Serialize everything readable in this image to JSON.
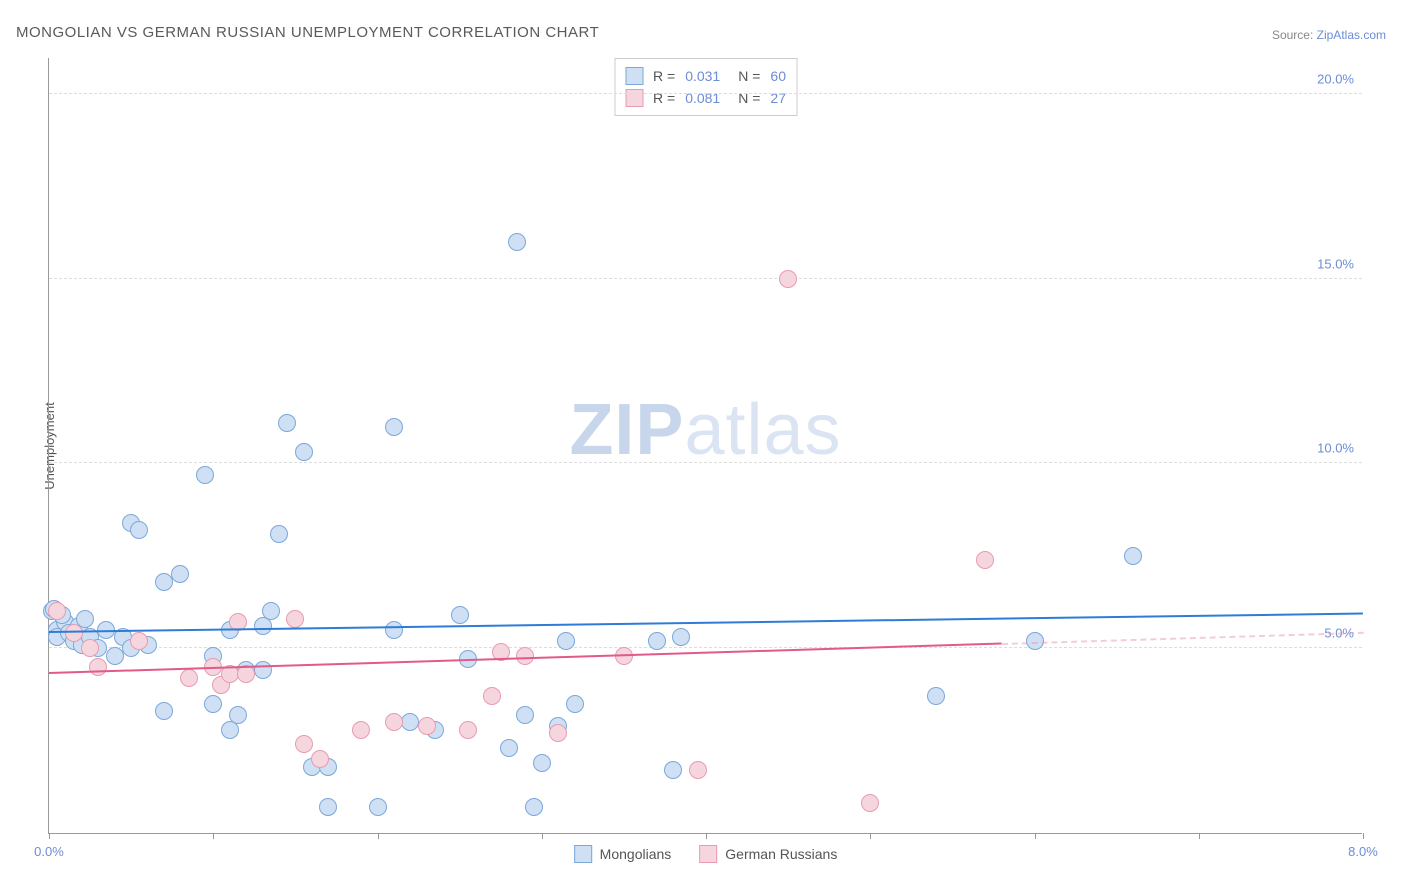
{
  "title": "MONGOLIAN VS GERMAN RUSSIAN UNEMPLOYMENT CORRELATION CHART",
  "source_label": "Source:",
  "source_name": "ZipAtlas.com",
  "ylabel": "Unemployment",
  "watermark_a": "ZIP",
  "watermark_b": "atlas",
  "chart": {
    "type": "scatter",
    "xlim": [
      0,
      8
    ],
    "ylim": [
      0,
      21
    ],
    "xticks": [
      0,
      1,
      2,
      3,
      4,
      5,
      6,
      7,
      8
    ],
    "xtick_labels": {
      "0": "0.0%",
      "8": "8.0%"
    },
    "yticks": [
      5,
      10,
      15,
      20
    ],
    "ytick_labels": [
      "5.0%",
      "10.0%",
      "15.0%",
      "20.0%"
    ],
    "grid_color": "#dddddd",
    "background_color": "#ffffff",
    "axis_color": "#999999",
    "label_color": "#6c8cd5",
    "marker_radius": 9,
    "marker_stroke": 1.5,
    "trend_width": 2,
    "series": [
      {
        "name": "Mongolians",
        "fill": "#cfe0f4",
        "stroke": "#7ba7d9",
        "line": "#2e7cd6",
        "R": "0.031",
        "N": "60",
        "trend": {
          "x0": 0,
          "y0": 5.4,
          "x1": 8,
          "y1": 5.9,
          "solid_until": 8
        },
        "points": [
          [
            0.02,
            6.0
          ],
          [
            0.03,
            6.05
          ],
          [
            0.05,
            5.5
          ],
          [
            0.05,
            5.3
          ],
          [
            0.1,
            5.7
          ],
          [
            0.12,
            5.4
          ],
          [
            0.15,
            5.2
          ],
          [
            0.18,
            5.6
          ],
          [
            0.2,
            5.1
          ],
          [
            0.22,
            5.8
          ],
          [
            0.25,
            5.3
          ],
          [
            0.3,
            5.0
          ],
          [
            0.35,
            5.5
          ],
          [
            0.4,
            4.8
          ],
          [
            0.45,
            5.3
          ],
          [
            0.5,
            5.0
          ],
          [
            0.5,
            8.4
          ],
          [
            0.55,
            8.2
          ],
          [
            0.7,
            6.8
          ],
          [
            0.7,
            3.3
          ],
          [
            0.8,
            7.0
          ],
          [
            0.95,
            9.7
          ],
          [
            1.0,
            4.8
          ],
          [
            1.0,
            3.5
          ],
          [
            1.1,
            5.5
          ],
          [
            1.1,
            2.8
          ],
          [
            1.15,
            3.2
          ],
          [
            1.2,
            4.4
          ],
          [
            1.3,
            5.6
          ],
          [
            1.3,
            4.4
          ],
          [
            1.35,
            6.0
          ],
          [
            1.4,
            8.1
          ],
          [
            1.45,
            11.1
          ],
          [
            1.55,
            10.3
          ],
          [
            1.6,
            1.8
          ],
          [
            1.7,
            0.7
          ],
          [
            1.7,
            1.8
          ],
          [
            2.1,
            5.5
          ],
          [
            2.1,
            11.0
          ],
          [
            2.0,
            0.7
          ],
          [
            2.2,
            3.0
          ],
          [
            2.35,
            2.8
          ],
          [
            2.5,
            5.9
          ],
          [
            2.55,
            4.7
          ],
          [
            2.8,
            2.3
          ],
          [
            2.85,
            16.0
          ],
          [
            2.9,
            3.2
          ],
          [
            2.95,
            0.7
          ],
          [
            3.1,
            2.9
          ],
          [
            3.15,
            5.2
          ],
          [
            3.2,
            3.5
          ],
          [
            3.0,
            1.9
          ],
          [
            3.7,
            5.2
          ],
          [
            3.8,
            1.7
          ],
          [
            3.85,
            5.3
          ],
          [
            5.4,
            3.7
          ],
          [
            6.6,
            7.5
          ],
          [
            6.0,
            5.2
          ],
          [
            0.6,
            5.1
          ],
          [
            0.08,
            5.9
          ]
        ]
      },
      {
        "name": "German Russians",
        "fill": "#f6d6de",
        "stroke": "#e89bb0",
        "line": "#e15a8a",
        "R": "0.081",
        "N": "27",
        "trend": {
          "x0": 0,
          "y0": 4.3,
          "x1": 8,
          "y1": 5.4,
          "solid_until": 5.8
        },
        "points": [
          [
            0.05,
            6.0
          ],
          [
            0.25,
            5.0
          ],
          [
            0.3,
            4.5
          ],
          [
            0.55,
            5.2
          ],
          [
            0.85,
            4.2
          ],
          [
            1.0,
            4.5
          ],
          [
            1.05,
            4.0
          ],
          [
            1.1,
            4.3
          ],
          [
            1.15,
            5.7
          ],
          [
            1.2,
            4.3
          ],
          [
            1.5,
            5.8
          ],
          [
            1.55,
            2.4
          ],
          [
            1.65,
            2.0
          ],
          [
            1.9,
            2.8
          ],
          [
            2.1,
            3.0
          ],
          [
            2.3,
            2.9
          ],
          [
            2.55,
            2.8
          ],
          [
            2.7,
            3.7
          ],
          [
            2.75,
            4.9
          ],
          [
            2.9,
            4.8
          ],
          [
            3.1,
            2.7
          ],
          [
            3.5,
            4.8
          ],
          [
            3.95,
            1.7
          ],
          [
            4.5,
            15.0
          ],
          [
            5.0,
            0.8
          ],
          [
            5.7,
            7.4
          ],
          [
            0.15,
            5.4
          ]
        ]
      }
    ]
  },
  "legend_bottom": [
    "Mongolians",
    "German Russians"
  ]
}
